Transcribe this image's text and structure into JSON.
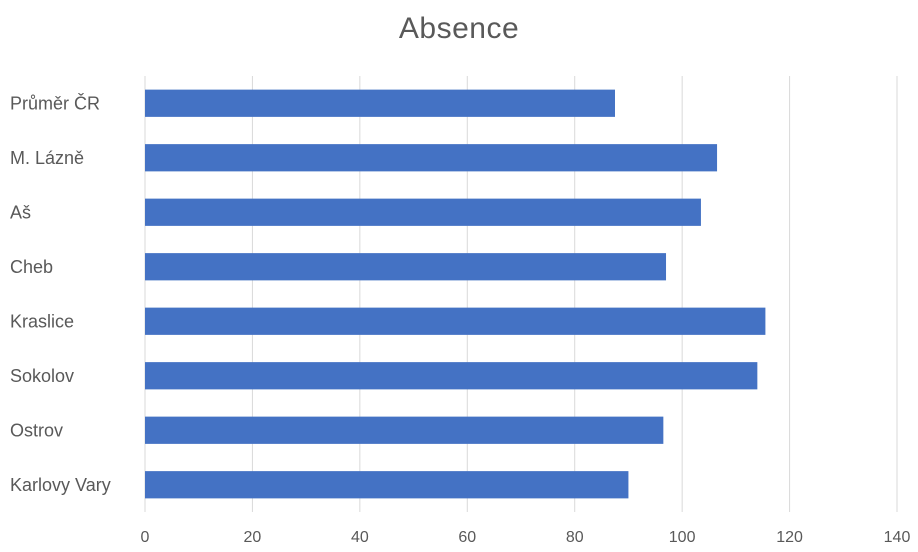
{
  "chart_data": {
    "type": "bar",
    "orientation": "horizontal",
    "title": "Absence",
    "xlabel": "",
    "ylabel": "",
    "categories": [
      "Průměr ČR",
      "M. Lázně",
      "Aš",
      "Cheb",
      "Kraslice",
      "Sokolov",
      "Ostrov",
      "Karlovy Vary"
    ],
    "values": [
      87.5,
      106.5,
      103.5,
      97,
      115.5,
      114,
      96.5,
      90
    ],
    "xlim": [
      0,
      140
    ],
    "xticks": [
      "0",
      "20",
      "40",
      "60",
      "80",
      "100",
      "120",
      "140"
    ],
    "grid": "vertical",
    "bar_color": "#4472c4",
    "grid_color": "#d9d9d9",
    "legend": "none"
  }
}
